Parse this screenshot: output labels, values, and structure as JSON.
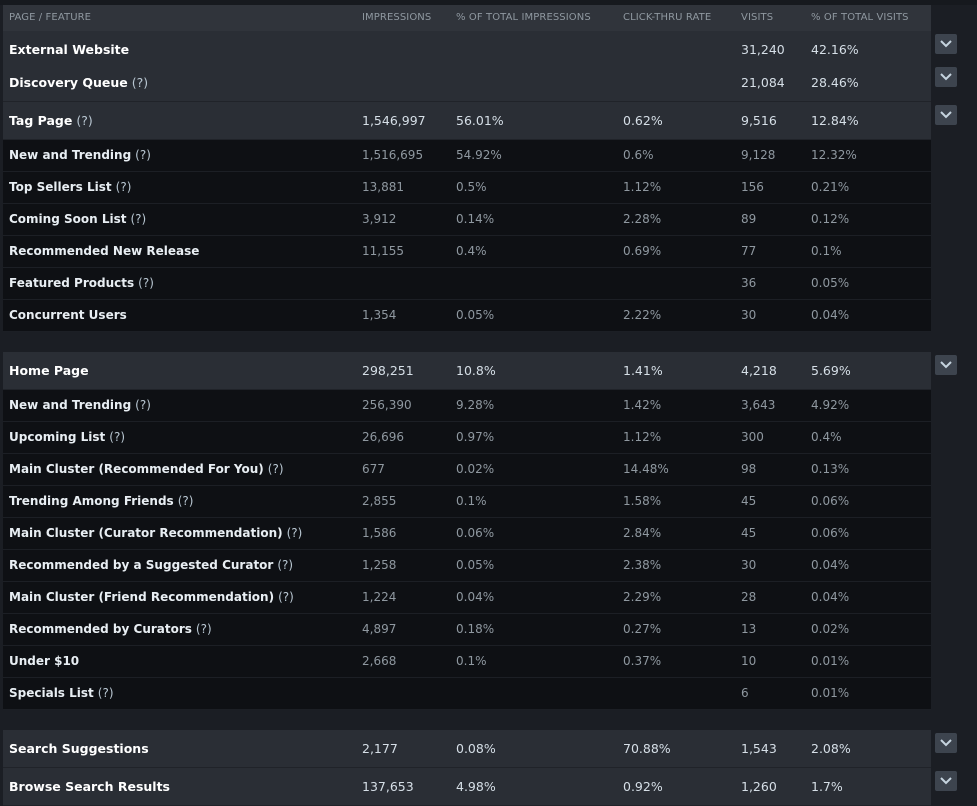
{
  "columns": {
    "feature": "PAGE / FEATURE",
    "impressions": "IMPRESSIONS",
    "pct_impressions": "% OF TOTAL IMPRESSIONS",
    "ctr": "CLICK-THRU RATE",
    "visits": "VISITS",
    "pct_visits": "% OF TOTAL VISITS"
  },
  "rows": [
    {
      "type": "group",
      "name": "External Website",
      "q": "",
      "impressions": "",
      "pct_impressions": "",
      "ctr": "",
      "visits": "31,240",
      "pct_visits": "42.16%"
    },
    {
      "type": "group",
      "name": "Discovery Queue",
      "q": "(?)",
      "impressions": "",
      "pct_impressions": "",
      "ctr": "",
      "visits": "21,084",
      "pct_visits": "28.46%"
    },
    {
      "type": "group",
      "name": "Tag Page",
      "q": "(?)",
      "impressions": "1,546,997",
      "pct_impressions": "56.01%",
      "ctr": "0.62%",
      "visits": "9,516",
      "pct_visits": "12.84%"
    },
    {
      "type": "sub",
      "name": "New and Trending",
      "q": "(?)",
      "impressions": "1,516,695",
      "pct_impressions": "54.92%",
      "ctr": "0.6%",
      "visits": "9,128",
      "pct_visits": "12.32%"
    },
    {
      "type": "sub",
      "name": "Top Sellers List",
      "q": "(?)",
      "impressions": "13,881",
      "pct_impressions": "0.5%",
      "ctr": "1.12%",
      "visits": "156",
      "pct_visits": "0.21%"
    },
    {
      "type": "sub",
      "name": "Coming Soon List",
      "q": "(?)",
      "impressions": "3,912",
      "pct_impressions": "0.14%",
      "ctr": "2.28%",
      "visits": "89",
      "pct_visits": "0.12%"
    },
    {
      "type": "sub",
      "name": "Recommended New Release",
      "q": "",
      "impressions": "11,155",
      "pct_impressions": "0.4%",
      "ctr": "0.69%",
      "visits": "77",
      "pct_visits": "0.1%"
    },
    {
      "type": "sub",
      "name": "Featured Products",
      "q": "(?)",
      "impressions": "",
      "pct_impressions": "",
      "ctr": "",
      "visits": "36",
      "pct_visits": "0.05%"
    },
    {
      "type": "sub",
      "name": "Concurrent Users",
      "q": "",
      "impressions": "1,354",
      "pct_impressions": "0.05%",
      "ctr": "2.22%",
      "visits": "30",
      "pct_visits": "0.04%"
    },
    {
      "type": "group",
      "name": "Home Page",
      "q": "",
      "impressions": "298,251",
      "pct_impressions": "10.8%",
      "ctr": "1.41%",
      "visits": "4,218",
      "pct_visits": "5.69%"
    },
    {
      "type": "sub",
      "name": "New and Trending",
      "q": "(?)",
      "impressions": "256,390",
      "pct_impressions": "9.28%",
      "ctr": "1.42%",
      "visits": "3,643",
      "pct_visits": "4.92%"
    },
    {
      "type": "sub",
      "name": "Upcoming List",
      "q": "(?)",
      "impressions": "26,696",
      "pct_impressions": "0.97%",
      "ctr": "1.12%",
      "visits": "300",
      "pct_visits": "0.4%"
    },
    {
      "type": "sub",
      "name": "Main Cluster (Recommended For You)",
      "q": "(?)",
      "impressions": "677",
      "pct_impressions": "0.02%",
      "ctr": "14.48%",
      "visits": "98",
      "pct_visits": "0.13%"
    },
    {
      "type": "sub",
      "name": "Trending Among Friends",
      "q": "(?)",
      "impressions": "2,855",
      "pct_impressions": "0.1%",
      "ctr": "1.58%",
      "visits": "45",
      "pct_visits": "0.06%"
    },
    {
      "type": "sub",
      "name": "Main Cluster (Curator Recommendation)",
      "q": "(?)",
      "impressions": "1,586",
      "pct_impressions": "0.06%",
      "ctr": "2.84%",
      "visits": "45",
      "pct_visits": "0.06%"
    },
    {
      "type": "sub",
      "name": "Recommended by a Suggested Curator",
      "q": "(?)",
      "impressions": "1,258",
      "pct_impressions": "0.05%",
      "ctr": "2.38%",
      "visits": "30",
      "pct_visits": "0.04%"
    },
    {
      "type": "sub",
      "name": "Main Cluster (Friend Recommendation)",
      "q": "(?)",
      "impressions": "1,224",
      "pct_impressions": "0.04%",
      "ctr": "2.29%",
      "visits": "28",
      "pct_visits": "0.04%"
    },
    {
      "type": "sub",
      "name": "Recommended by Curators",
      "q": "(?)",
      "impressions": "4,897",
      "pct_impressions": "0.18%",
      "ctr": "0.27%",
      "visits": "13",
      "pct_visits": "0.02%"
    },
    {
      "type": "sub",
      "name": "Under $10",
      "q": "",
      "impressions": "2,668",
      "pct_impressions": "0.1%",
      "ctr": "0.37%",
      "visits": "10",
      "pct_visits": "0.01%"
    },
    {
      "type": "sub",
      "name": "Specials List",
      "q": "(?)",
      "impressions": "",
      "pct_impressions": "",
      "ctr": "",
      "visits": "6",
      "pct_visits": "0.01%"
    },
    {
      "type": "group",
      "name": "Search Suggestions",
      "q": "",
      "impressions": "2,177",
      "pct_impressions": "0.08%",
      "ctr": "70.88%",
      "visits": "1,543",
      "pct_visits": "2.08%"
    },
    {
      "type": "group",
      "name": "Browse Search Results",
      "q": "",
      "impressions": "137,653",
      "pct_impressions": "4.98%",
      "ctr": "0.92%",
      "visits": "1,260",
      "pct_visits": "1.7%"
    }
  ]
}
